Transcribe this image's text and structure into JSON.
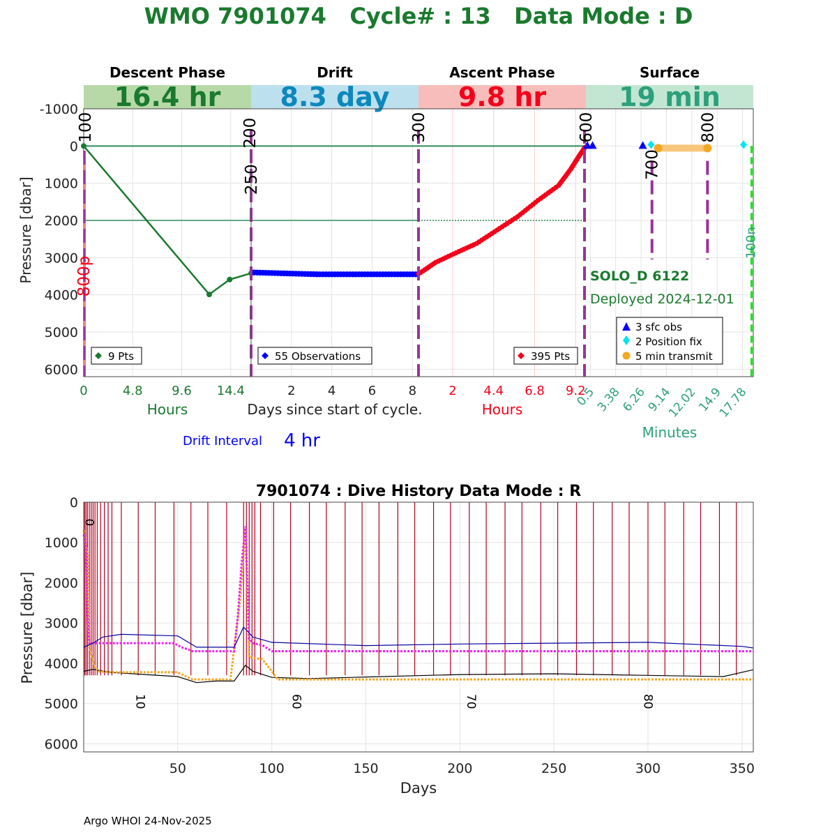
{
  "colors": {
    "descent": "#1a7a2e",
    "drift": "#0000ff",
    "ascent": "#f5001a",
    "surface": "#2ca07a",
    "descent_bg": "#b7d9a8",
    "drift_bg": "#bde0ee",
    "ascent_bg": "#f7bdbb",
    "surface_bg": "#c3e6d3",
    "drift_text": "#0c88bd",
    "magenta": "#ee22ee",
    "orange": "#f5a623",
    "purple": "#993399",
    "darkred": "#b00020",
    "navy": "#0000a0",
    "cyan": "#00e5ee",
    "green_line": "#00ee00"
  },
  "header": {
    "title": "WMO 7901074   Cycle# : 13   Data Mode : D"
  },
  "chart_data": [
    {
      "type": "line",
      "title": "WMO 7901074   Cycle# : 13   Data Mode : D",
      "ylabel": "Pressure [dbar]",
      "xlabel": "Days since start of cycle.",
      "ylim": [
        6200,
        -1000
      ],
      "yticks": [
        -1000,
        0,
        1000,
        2000,
        3000,
        4000,
        5000,
        6000
      ],
      "ytick_labels": [
        "-1000",
        "0",
        "1000",
        "2000",
        "3000",
        "4000",
        "5000",
        "6000"
      ],
      "reference_lines": [
        0,
        2000
      ],
      "float_name": "SOLO_D 6122",
      "deployed": "Deployed 2024-12-01",
      "drift_interval_label": "Drift Interval",
      "drift_interval_value": "4 hr",
      "phases": [
        {
          "key": "descent",
          "name": "Descent Phase",
          "duration": "16.4 hr",
          "unit_label": "Hours",
          "xlim": [
            0,
            16.4
          ],
          "xtick_values": [
            0,
            4.8,
            9.6,
            14.4
          ],
          "xtick_labels": [
            "0",
            "4.8",
            "9.6",
            "14.4"
          ],
          "legend": "9 Pts",
          "series": {
            "x": [
              0,
              12.3,
              14.3,
              16.4
            ],
            "y": [
              0,
              3990,
              3590,
              3420
            ],
            "markers_x": [
              0,
              12.3,
              14.3,
              16.4
            ],
            "markers_y": [
              0,
              3990,
              3590,
              3420
            ]
          }
        },
        {
          "key": "drift",
          "name": "Drift",
          "duration": "8.3 day",
          "unit_label": "",
          "xlim": [
            0,
            8.3
          ],
          "xtick_values": [
            2,
            4,
            6,
            8
          ],
          "xtick_labels": [
            "2",
            "4",
            "6",
            "8"
          ],
          "legend": "55 Observations",
          "series": {
            "start": 3400,
            "end": 3450,
            "count": 55
          }
        },
        {
          "key": "ascent",
          "name": "Ascent Phase",
          "duration": "9.8 hr",
          "unit_label": "Hours",
          "xlim": [
            0,
            9.8
          ],
          "xtick_values": [
            2,
            4.4,
            6.8,
            9.2
          ],
          "xtick_labels": [
            "2",
            "4.4",
            "6.8",
            "9.2"
          ],
          "legend": "395 Pts",
          "series": {
            "x": [
              0,
              1.0,
              2.2,
              3.4,
              4.6,
              5.8,
              7.0,
              8.2,
              8.9,
              9.4,
              9.8
            ],
            "y": [
              3440,
              3130,
              2870,
              2620,
              2260,
              1900,
              1460,
              1060,
              630,
              270,
              0
            ]
          }
        },
        {
          "key": "surface",
          "name": "Surface",
          "duration": "19 min",
          "unit_label": "Minutes",
          "xlim": [
            0,
            19
          ],
          "xtick_values": [
            0.5,
            3.38,
            6.26,
            9.14,
            12.02,
            14.9,
            17.78
          ],
          "xtick_labels": [
            "0.5",
            "3.38",
            "6.26",
            "9.14",
            "12.02",
            "14.9",
            "17.78"
          ],
          "sfc_obs_x": [
            0.0,
            0.6,
            6.3
          ],
          "position_fix_x": [
            7.4,
            17.9
          ],
          "transmit_x": [
            8.2,
            13.8
          ],
          "legend": [
            "3 sfc obs",
            "2 Position fix",
            "5 min transmit"
          ]
        }
      ],
      "annotations": [
        {
          "text": "100",
          "phase": "descent",
          "x": 0,
          "color": "#000000"
        },
        {
          "text": "800p",
          "phase": "descent",
          "x": 0,
          "color": "#f5001a"
        },
        {
          "text": "200",
          "phase": "drift",
          "x": 0,
          "color": "#000000"
        },
        {
          "text": "250",
          "phase": "drift",
          "x": 0,
          "color": "#000000"
        },
        {
          "text": "300",
          "phase": "ascent",
          "x": 0,
          "color": "#000000"
        },
        {
          "text": "600",
          "phase": "surface",
          "x": 0,
          "color": "#000000"
        },
        {
          "text": "700",
          "phase": "surface",
          "x": 7.5,
          "color": "#000000"
        },
        {
          "text": "800",
          "phase": "surface",
          "x": 13.8,
          "color": "#000000"
        },
        {
          "text": "100n",
          "phase": "surface",
          "x": 18.8,
          "color": "#2ca07a"
        }
      ]
    },
    {
      "type": "line",
      "title": "7901074 : Dive History      Data Mode : R",
      "xlabel": "Days",
      "ylabel": "Pressure [dbar]",
      "xlim": [
        0,
        356
      ],
      "ylim": [
        6200,
        0
      ],
      "xticks": [
        50,
        100,
        150,
        200,
        250,
        300,
        350
      ],
      "xtick_labels": [
        "50",
        "100",
        "150",
        "200",
        "250",
        "300",
        "350"
      ],
      "yticks": [
        0,
        1000,
        2000,
        3000,
        4000,
        5000,
        6000
      ],
      "ytick_labels": [
        "0",
        "1000",
        "2000",
        "3000",
        "4000",
        "5000",
        "6000"
      ],
      "profile_days": [
        0.5,
        1.2,
        2,
        3,
        4,
        5,
        6,
        7.2,
        9,
        11,
        13,
        15,
        20,
        29,
        38,
        48,
        57,
        66,
        76,
        85,
        86.5,
        88,
        89.5,
        91,
        94,
        101,
        110,
        120,
        129,
        139,
        148,
        157,
        167,
        176,
        186,
        195,
        205,
        214,
        224,
        233,
        243,
        252,
        262,
        271,
        281,
        290,
        300,
        309,
        319,
        328,
        338,
        347
      ],
      "cycle_labels": [
        {
          "text": "0",
          "day": 1
        },
        {
          "text": "10",
          "day": 28
        },
        {
          "text": "60",
          "day": 111
        },
        {
          "text": "70",
          "day": 204
        },
        {
          "text": "80",
          "day": 298
        }
      ],
      "series": [
        {
          "name": "bottom",
          "color": "#000000",
          "x": [
            0,
            5,
            15,
            30,
            50,
            60,
            70,
            80,
            86,
            90,
            100,
            120,
            150,
            200,
            250,
            300,
            340,
            356
          ],
          "y": [
            4200,
            4150,
            4230,
            4270,
            4330,
            4480,
            4440,
            4440,
            4050,
            4200,
            4350,
            4380,
            4340,
            4280,
            4260,
            4300,
            4330,
            4160
          ]
        },
        {
          "name": "profile",
          "color": "#f5a623",
          "x": [
            0,
            1,
            2,
            3,
            5,
            6,
            8,
            15,
            49,
            50,
            58,
            60,
            78,
            83,
            86,
            88,
            95,
            100,
            103,
            356
          ],
          "y": [
            700,
            1000,
            1300,
            3600,
            3950,
            4100,
            4200,
            4220,
            4220,
            4230,
            4400,
            4400,
            4400,
            2500,
            700,
            3850,
            3900,
            4200,
            4400,
            4400
          ]
        },
        {
          "name": "park",
          "color": "#ee22ee",
          "x": [
            0,
            1,
            2,
            3,
            4,
            5,
            15,
            48,
            52,
            58,
            80,
            82,
            84,
            86,
            88,
            90,
            95,
            100,
            356
          ],
          "y": [
            800,
            1000,
            2800,
            3500,
            3500,
            3500,
            3500,
            3500,
            3600,
            3700,
            3700,
            2800,
            1500,
            600,
            3400,
            3500,
            3550,
            3700,
            3700
          ]
        },
        {
          "name": "drift",
          "color": "#0000a0",
          "x": [
            0,
            5,
            10,
            20,
            50,
            60,
            80,
            85,
            90,
            100,
            150,
            200,
            250,
            300,
            350,
            356
          ],
          "y": [
            3600,
            3500,
            3350,
            3280,
            3320,
            3600,
            3600,
            3100,
            3350,
            3480,
            3560,
            3520,
            3500,
            3480,
            3580,
            3620
          ]
        }
      ]
    }
  ],
  "footer": {
    "credit": "Argo WHOI 24-Nov-2025"
  }
}
